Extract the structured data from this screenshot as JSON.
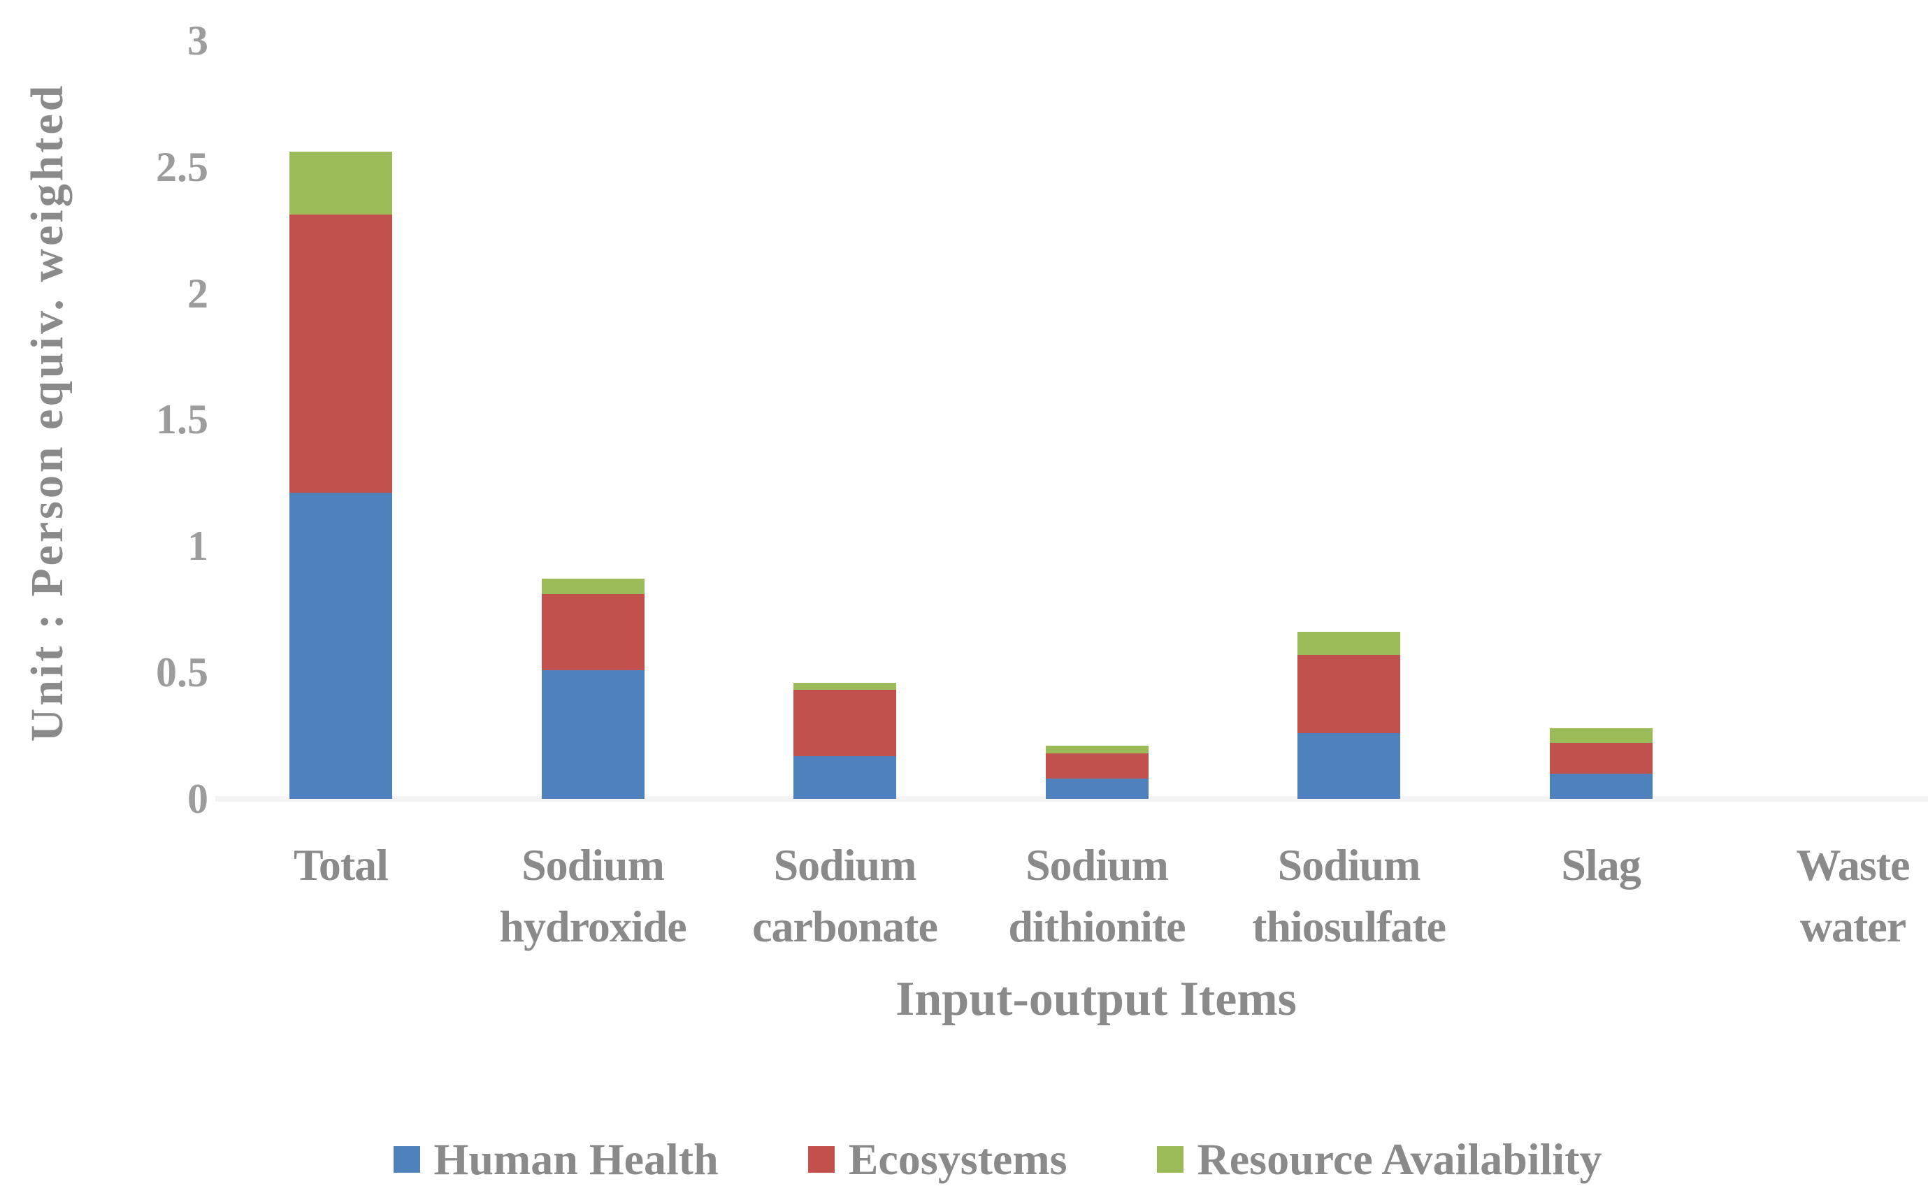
{
  "chart_data": {
    "type": "bar",
    "stacked": true,
    "title": "",
    "xlabel": "Input-output Items",
    "ylabel": "Unit : Person equiv. weighted",
    "categories": [
      "Total",
      "Sodium hydroxide",
      "Sodium carbonate",
      "Sodium dithionite",
      "Sodium thiosulfate",
      "Slag",
      "Waste water"
    ],
    "series": [
      {
        "name": "Human Health",
        "color": "#4F81BD",
        "values": [
          1.21,
          0.51,
          0.17,
          0.08,
          0.26,
          0.1,
          0
        ]
      },
      {
        "name": "Ecosystems",
        "color": "#C2504D",
        "values": [
          1.1,
          0.3,
          0.26,
          0.1,
          0.31,
          0.12,
          0
        ]
      },
      {
        "name": "Resource Availability",
        "color": "#9BBB59",
        "values": [
          0.25,
          0.06,
          0.03,
          0.03,
          0.09,
          0.06,
          0
        ]
      }
    ],
    "ylim": [
      0,
      3
    ],
    "yticks": [
      "0",
      "0.5",
      "1",
      "1.5",
      "2",
      "2.5",
      "3"
    ],
    "grid": false,
    "legend_position": "bottom",
    "axis_line_color": "#F4F4F4",
    "text_color": "#8A8A8A"
  }
}
